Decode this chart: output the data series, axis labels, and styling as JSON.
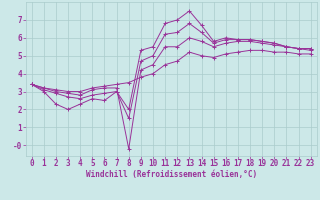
{
  "xlabel": "Windchill (Refroidissement éolien,°C)",
  "bg_color": "#cce8e8",
  "grid_color": "#aacccc",
  "line_color": "#993399",
  "x_ticks": [
    0,
    1,
    2,
    3,
    4,
    5,
    6,
    7,
    8,
    9,
    10,
    11,
    12,
    13,
    14,
    15,
    16,
    17,
    18,
    19,
    20,
    21,
    22,
    23
  ],
  "y_ticks": [
    0,
    1,
    2,
    3,
    4,
    5,
    6,
    7
  ],
  "ylim": [
    -0.6,
    8.0
  ],
  "xlim": [
    -0.5,
    23.5
  ],
  "series": [
    [
      3.4,
      3.0,
      2.3,
      2.0,
      2.3,
      2.6,
      2.5,
      3.0,
      2.0,
      5.3,
      5.5,
      6.8,
      7.0,
      7.5,
      6.7,
      5.8,
      6.0,
      5.9,
      5.9,
      5.8,
      5.7,
      5.5,
      5.4,
      5.4
    ],
    [
      3.4,
      3.2,
      3.0,
      2.9,
      2.8,
      3.1,
      3.2,
      3.2,
      -0.2,
      4.2,
      4.5,
      5.5,
      5.5,
      6.0,
      5.8,
      5.5,
      5.7,
      5.8,
      5.8,
      5.7,
      5.6,
      5.5,
      5.4,
      5.3
    ],
    [
      3.4,
      3.1,
      2.9,
      2.7,
      2.6,
      2.8,
      2.9,
      3.0,
      1.5,
      4.7,
      5.0,
      6.2,
      6.3,
      6.8,
      6.3,
      5.7,
      5.9,
      5.9,
      5.9,
      5.8,
      5.7,
      5.5,
      5.4,
      5.4
    ],
    [
      3.4,
      3.2,
      3.1,
      3.0,
      3.0,
      3.2,
      3.3,
      3.4,
      3.5,
      3.8,
      4.0,
      4.5,
      4.7,
      5.2,
      5.0,
      4.9,
      5.1,
      5.2,
      5.3,
      5.3,
      5.2,
      5.2,
      5.1,
      5.1
    ]
  ]
}
